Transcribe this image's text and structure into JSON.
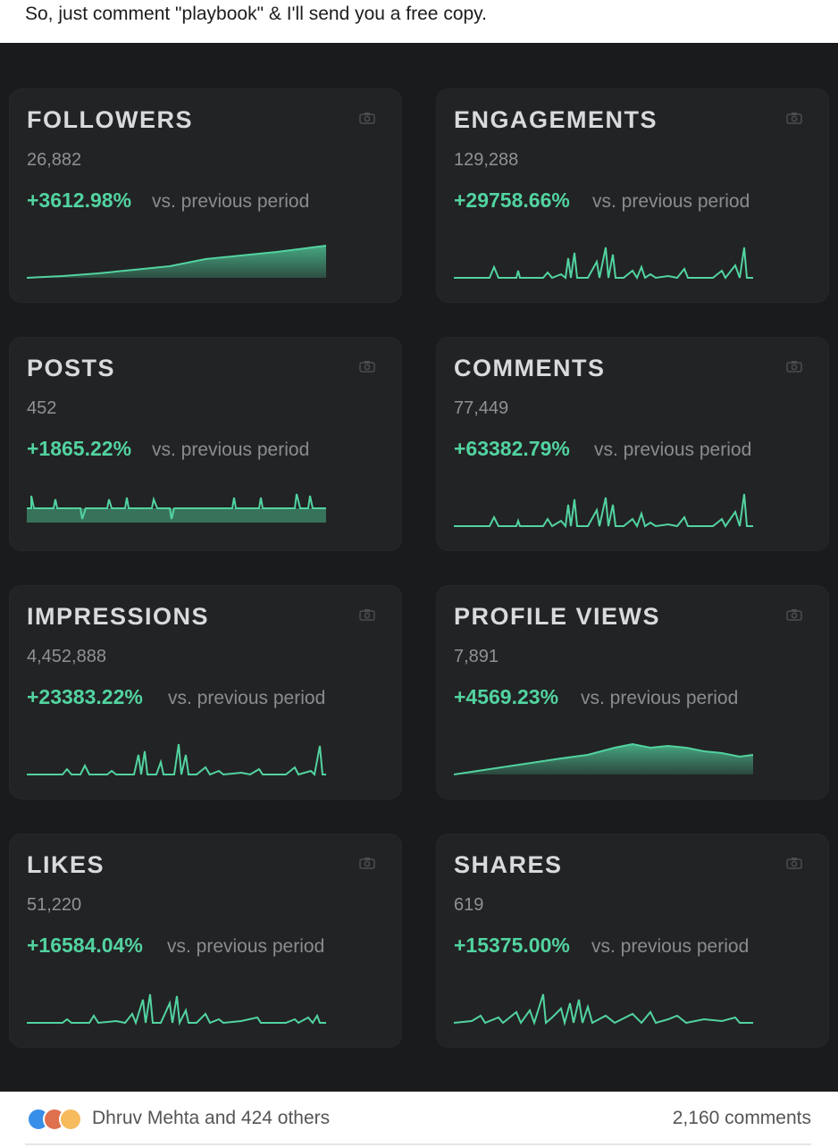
{
  "post": {
    "text": "So, just comment \"playbook\" & I'll send you a free copy."
  },
  "colors": {
    "accent": "#52d3a0",
    "card": "#222324",
    "background": "#1a1b1c"
  },
  "vs_label": "vs. previous period",
  "cards": [
    {
      "title": "FOLLOWERS",
      "value": "26,882",
      "change": "+3612.98%",
      "icon": "camera-icon",
      "trend": "rising-area"
    },
    {
      "title": "ENGAGEMENTS",
      "value": "129,288",
      "change": "+29758.66%",
      "icon": "camera-icon",
      "trend": "spiky"
    },
    {
      "title": "POSTS",
      "value": "452",
      "change": "+1865.22%",
      "icon": "camera-icon",
      "trend": "flat-spiky"
    },
    {
      "title": "COMMENTS",
      "value": "77,449",
      "change": "+63382.79%",
      "icon": "camera-icon",
      "trend": "spiky"
    },
    {
      "title": "IMPRESSIONS",
      "value": "4,452,888",
      "change": "+23383.22%",
      "icon": "camera-icon",
      "trend": "spiky"
    },
    {
      "title": "PROFILE VIEWS",
      "value": "7,891",
      "change": "+4569.23%",
      "icon": "camera-icon",
      "trend": "rising-area"
    },
    {
      "title": "LIKES",
      "value": "51,220",
      "change": "+16584.04%",
      "icon": "camera-icon",
      "trend": "spiky"
    },
    {
      "title": "SHARES",
      "value": "619",
      "change": "+15375.00%",
      "icon": "camera-icon",
      "trend": "spiky"
    }
  ],
  "footer": {
    "likers": "Dhruv Mehta and 424 others",
    "comments": "2,160 comments",
    "reaction_icons": [
      "like-icon",
      "love-icon",
      "insightful-icon"
    ]
  }
}
